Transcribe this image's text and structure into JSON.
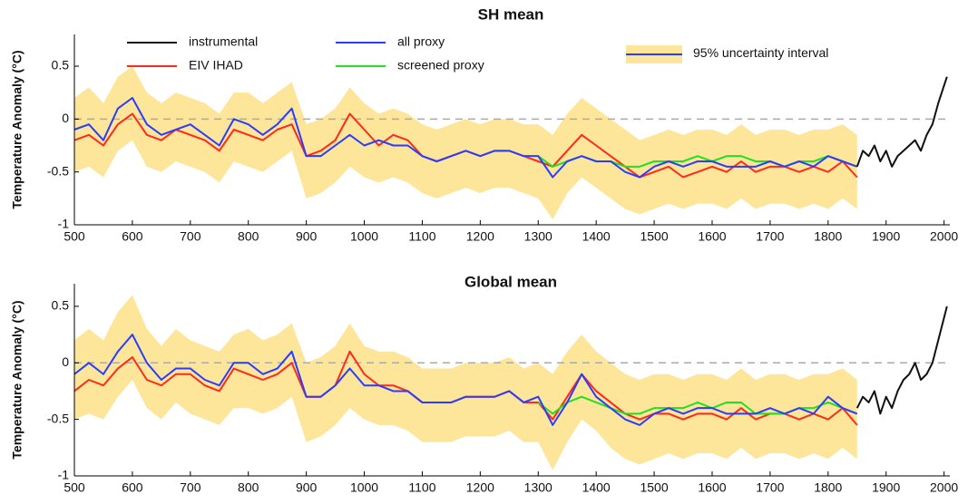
{
  "chart_data": [
    {
      "type": "line",
      "title": "SH mean",
      "y_label": "Temperature Anomaly (°C)",
      "xlim": [
        500,
        2010
      ],
      "ylim": [
        -1,
        0.8
      ],
      "xticks": [
        500,
        600,
        700,
        800,
        900,
        1000,
        1100,
        1200,
        1300,
        1400,
        1500,
        1600,
        1700,
        1800,
        1900,
        2000
      ],
      "yticks": [
        -1,
        -0.5,
        0,
        0.5
      ],
      "reference_line": 0,
      "legend": true,
      "x": [
        500,
        525,
        550,
        575,
        600,
        625,
        650,
        675,
        700,
        725,
        750,
        775,
        800,
        825,
        850,
        875,
        900,
        925,
        950,
        975,
        1000,
        1025,
        1050,
        1075,
        1100,
        1125,
        1150,
        1175,
        1200,
        1225,
        1250,
        1275,
        1300,
        1325,
        1350,
        1375,
        1400,
        1425,
        1450,
        1475,
        1500,
        1525,
        1550,
        1575,
        1600,
        1625,
        1650,
        1675,
        1700,
        1725,
        1750,
        1775,
        1800,
        1825,
        1850
      ],
      "band": {
        "name": "95% uncertainty interval",
        "color": "#fde59a",
        "lower": [
          -0.5,
          -0.45,
          -0.55,
          -0.3,
          -0.2,
          -0.45,
          -0.5,
          -0.4,
          -0.45,
          -0.5,
          -0.6,
          -0.4,
          -0.45,
          -0.5,
          -0.4,
          -0.3,
          -0.75,
          -0.7,
          -0.6,
          -0.45,
          -0.55,
          -0.6,
          -0.55,
          -0.6,
          -0.7,
          -0.75,
          -0.7,
          -0.65,
          -0.7,
          -0.65,
          -0.65,
          -0.7,
          -0.75,
          -0.95,
          -0.7,
          -0.55,
          -0.65,
          -0.75,
          -0.85,
          -0.9,
          -0.85,
          -0.8,
          -0.85,
          -0.8,
          -0.8,
          -0.85,
          -0.75,
          -0.85,
          -0.8,
          -0.8,
          -0.85,
          -0.8,
          -0.85,
          -0.75,
          -0.85
        ],
        "upper": [
          0.2,
          0.3,
          0.15,
          0.4,
          0.5,
          0.25,
          0.15,
          0.25,
          0.2,
          0.15,
          0.05,
          0.25,
          0.25,
          0.15,
          0.25,
          0.35,
          -0.05,
          0,
          0.1,
          0.3,
          0.15,
          0.05,
          0.1,
          0.05,
          -0.05,
          -0.1,
          -0.05,
          0,
          -0.05,
          0,
          0,
          -0.05,
          -0.05,
          -0.15,
          0.05,
          0.2,
          0.1,
          0,
          -0.1,
          -0.2,
          -0.15,
          -0.1,
          -0.15,
          -0.1,
          -0.1,
          -0.15,
          -0.05,
          -0.15,
          -0.1,
          -0.1,
          -0.15,
          -0.1,
          -0.1,
          -0.05,
          -0.15
        ]
      },
      "series": [
        {
          "name": "instrumental",
          "color": "#111111",
          "x": [
            1850,
            1860,
            1870,
            1880,
            1890,
            1900,
            1910,
            1920,
            1930,
            1940,
            1950,
            1960,
            1970,
            1980,
            1990,
            2005
          ],
          "values": [
            -0.45,
            -0.3,
            -0.35,
            -0.25,
            -0.4,
            -0.3,
            -0.45,
            -0.35,
            -0.3,
            -0.25,
            -0.2,
            -0.3,
            -0.15,
            -0.05,
            0.15,
            0.4
          ]
        },
        {
          "name": "EIV IHAD",
          "color": "#ff2a1a",
          "values": [
            -0.2,
            -0.15,
            -0.25,
            -0.05,
            0.05,
            -0.15,
            -0.2,
            -0.1,
            -0.15,
            -0.2,
            -0.3,
            -0.1,
            -0.15,
            -0.2,
            -0.1,
            -0.05,
            -0.35,
            -0.3,
            -0.2,
            0.05,
            -0.1,
            -0.25,
            -0.15,
            -0.2,
            -0.35,
            -0.4,
            -0.35,
            -0.3,
            -0.35,
            -0.3,
            -0.3,
            -0.35,
            -0.4,
            -0.45,
            -0.3,
            -0.15,
            -0.25,
            -0.35,
            -0.45,
            -0.55,
            -0.5,
            -0.45,
            -0.55,
            -0.5,
            -0.45,
            -0.5,
            -0.4,
            -0.5,
            -0.45,
            -0.45,
            -0.5,
            -0.45,
            -0.5,
            -0.4,
            -0.55
          ]
        },
        {
          "name": "all proxy",
          "color": "#2a3cff",
          "values": [
            -0.1,
            -0.05,
            -0.2,
            0.1,
            0.2,
            -0.05,
            -0.15,
            -0.1,
            -0.05,
            -0.15,
            -0.25,
            0,
            -0.05,
            -0.15,
            -0.05,
            0.1,
            -0.35,
            -0.35,
            -0.25,
            -0.15,
            -0.25,
            -0.2,
            -0.25,
            -0.25,
            -0.35,
            -0.4,
            -0.35,
            -0.3,
            -0.35,
            -0.3,
            -0.3,
            -0.35,
            -0.35,
            -0.55,
            -0.4,
            -0.35,
            -0.4,
            -0.4,
            -0.5,
            -0.55,
            -0.45,
            -0.4,
            -0.45,
            -0.4,
            -0.4,
            -0.45,
            -0.45,
            -0.45,
            -0.4,
            -0.45,
            -0.4,
            -0.45,
            -0.35,
            -0.4,
            -0.45
          ]
        },
        {
          "name": "screened proxy",
          "color": "#22e022",
          "values": [
            null,
            null,
            null,
            null,
            null,
            null,
            null,
            null,
            null,
            null,
            null,
            null,
            null,
            null,
            null,
            null,
            null,
            null,
            null,
            null,
            null,
            null,
            null,
            null,
            null,
            null,
            null,
            null,
            null,
            null,
            null,
            null,
            -0.35,
            -0.45,
            -0.4,
            -0.35,
            -0.4,
            -0.4,
            -0.45,
            -0.45,
            -0.4,
            -0.4,
            -0.4,
            -0.35,
            -0.4,
            -0.35,
            -0.35,
            -0.4,
            -0.4,
            -0.45,
            -0.4,
            -0.4,
            -0.35,
            -0.4,
            -0.45
          ]
        }
      ]
    },
    {
      "type": "line",
      "title": "Global mean",
      "y_label": "Temperature Anomaly (°C)",
      "xlim": [
        500,
        2010
      ],
      "ylim": [
        -1,
        0.7
      ],
      "xticks": [
        500,
        600,
        700,
        800,
        900,
        1000,
        1100,
        1200,
        1300,
        1400,
        1500,
        1600,
        1700,
        1800,
        1900,
        2000
      ],
      "yticks": [
        -1,
        -0.5,
        0,
        0.5
      ],
      "reference_line": 0,
      "legend": false,
      "x": [
        500,
        525,
        550,
        575,
        600,
        625,
        650,
        675,
        700,
        725,
        750,
        775,
        800,
        825,
        850,
        875,
        900,
        925,
        950,
        975,
        1000,
        1025,
        1050,
        1075,
        1100,
        1125,
        1150,
        1175,
        1200,
        1225,
        1250,
        1275,
        1300,
        1325,
        1350,
        1375,
        1400,
        1425,
        1450,
        1475,
        1500,
        1525,
        1550,
        1575,
        1600,
        1625,
        1650,
        1675,
        1700,
        1725,
        1750,
        1775,
        1800,
        1825,
        1850
      ],
      "band": {
        "name": "95% uncertainty interval",
        "color": "#fde59a",
        "lower": [
          -0.5,
          -0.45,
          -0.5,
          -0.3,
          -0.15,
          -0.4,
          -0.5,
          -0.35,
          -0.45,
          -0.5,
          -0.55,
          -0.4,
          -0.4,
          -0.45,
          -0.4,
          -0.3,
          -0.7,
          -0.65,
          -0.55,
          -0.4,
          -0.5,
          -0.55,
          -0.55,
          -0.6,
          -0.7,
          -0.7,
          -0.7,
          -0.65,
          -0.65,
          -0.65,
          -0.6,
          -0.7,
          -0.7,
          -0.95,
          -0.7,
          -0.5,
          -0.6,
          -0.75,
          -0.85,
          -0.9,
          -0.85,
          -0.8,
          -0.85,
          -0.8,
          -0.8,
          -0.85,
          -0.75,
          -0.85,
          -0.8,
          -0.8,
          -0.85,
          -0.8,
          -0.85,
          -0.75,
          -0.85
        ],
        "upper": [
          0.2,
          0.3,
          0.2,
          0.45,
          0.6,
          0.3,
          0.15,
          0.3,
          0.2,
          0.15,
          0.1,
          0.25,
          0.3,
          0.2,
          0.25,
          0.35,
          0,
          0.05,
          0.15,
          0.35,
          0.15,
          0.1,
          0.1,
          0.05,
          -0.05,
          -0.05,
          -0.05,
          0,
          0,
          0,
          0.05,
          -0.05,
          0,
          -0.1,
          0.1,
          0.25,
          0.1,
          0,
          -0.1,
          -0.15,
          -0.1,
          -0.1,
          -0.15,
          -0.1,
          -0.1,
          -0.15,
          -0.05,
          -0.15,
          -0.1,
          -0.1,
          -0.15,
          -0.1,
          -0.1,
          -0.05,
          -0.15
        ]
      },
      "series": [
        {
          "name": "instrumental",
          "color": "#111111",
          "x": [
            1850,
            1860,
            1870,
            1880,
            1890,
            1900,
            1910,
            1920,
            1930,
            1940,
            1950,
            1960,
            1970,
            1980,
            1990,
            2005
          ],
          "values": [
            -0.4,
            -0.3,
            -0.35,
            -0.25,
            -0.45,
            -0.3,
            -0.4,
            -0.25,
            -0.15,
            -0.1,
            0,
            -0.15,
            -0.1,
            0,
            0.2,
            0.5
          ]
        },
        {
          "name": "EIV IHAD",
          "color": "#ff2a1a",
          "values": [
            -0.25,
            -0.15,
            -0.2,
            -0.05,
            0.05,
            -0.15,
            -0.2,
            -0.1,
            -0.1,
            -0.2,
            -0.25,
            -0.05,
            -0.1,
            -0.15,
            -0.1,
            0,
            -0.3,
            -0.3,
            -0.2,
            0.1,
            -0.1,
            -0.2,
            -0.2,
            -0.25,
            -0.35,
            -0.35,
            -0.35,
            -0.3,
            -0.3,
            -0.3,
            -0.25,
            -0.35,
            -0.35,
            -0.5,
            -0.3,
            -0.1,
            -0.25,
            -0.35,
            -0.45,
            -0.5,
            -0.45,
            -0.45,
            -0.5,
            -0.45,
            -0.45,
            -0.5,
            -0.4,
            -0.5,
            -0.45,
            -0.45,
            -0.5,
            -0.45,
            -0.5,
            -0.4,
            -0.55
          ]
        },
        {
          "name": "all proxy",
          "color": "#2a3cff",
          "values": [
            -0.1,
            0,
            -0.1,
            0.1,
            0.25,
            0,
            -0.15,
            -0.05,
            -0.05,
            -0.15,
            -0.2,
            0,
            0,
            -0.1,
            -0.05,
            0.1,
            -0.3,
            -0.3,
            -0.2,
            -0.05,
            -0.2,
            -0.2,
            -0.25,
            -0.25,
            -0.35,
            -0.35,
            -0.35,
            -0.3,
            -0.3,
            -0.3,
            -0.25,
            -0.35,
            -0.3,
            -0.55,
            -0.35,
            -0.1,
            -0.3,
            -0.4,
            -0.5,
            -0.55,
            -0.45,
            -0.4,
            -0.45,
            -0.4,
            -0.4,
            -0.45,
            -0.45,
            -0.45,
            -0.4,
            -0.45,
            -0.4,
            -0.45,
            -0.3,
            -0.4,
            -0.45
          ]
        },
        {
          "name": "screened proxy",
          "color": "#22e022",
          "values": [
            null,
            null,
            null,
            null,
            null,
            null,
            null,
            null,
            null,
            null,
            null,
            null,
            null,
            null,
            null,
            null,
            null,
            null,
            null,
            null,
            null,
            null,
            null,
            null,
            null,
            null,
            null,
            null,
            null,
            null,
            null,
            null,
            -0.35,
            -0.45,
            -0.35,
            -0.3,
            -0.35,
            -0.4,
            -0.45,
            -0.45,
            -0.4,
            -0.4,
            -0.4,
            -0.35,
            -0.4,
            -0.35,
            -0.35,
            -0.45,
            -0.45,
            -0.45,
            -0.4,
            -0.4,
            -0.35,
            -0.4,
            -0.45
          ]
        }
      ]
    }
  ]
}
